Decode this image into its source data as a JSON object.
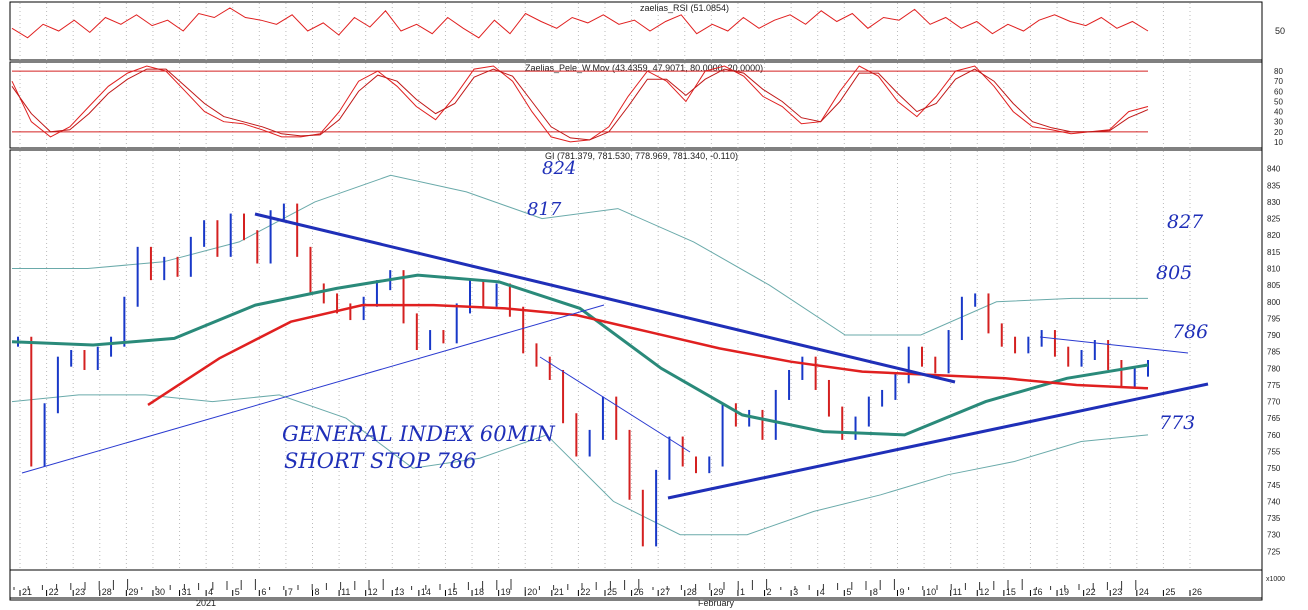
{
  "chart_data": [
    {
      "type": "line",
      "title": "zaelias_RSI (51.0854)",
      "y_ticks": [
        50
      ],
      "series": [
        {
          "name": "RSI",
          "color": "#e02020",
          "values": [
            52,
            45,
            55,
            50,
            58,
            49,
            60,
            55,
            62,
            54,
            58,
            50,
            63,
            60,
            67,
            60,
            58,
            55,
            62,
            50,
            56,
            47,
            60,
            53,
            65,
            50,
            55,
            48,
            60,
            52,
            45,
            58,
            48,
            63,
            57,
            52,
            60,
            56,
            62,
            55,
            58,
            50,
            57,
            62,
            48,
            55,
            50,
            60,
            52,
            58,
            62,
            55,
            65,
            57,
            63,
            52,
            60,
            58,
            66,
            55,
            60,
            52,
            57,
            48,
            55,
            50,
            58,
            62,
            57,
            54,
            60,
            52,
            57,
            50
          ]
        }
      ]
    },
    {
      "type": "line",
      "title": "Zaelias_Pele_W.Mov (43.4359, 47.9071, 80.0000, 20.0000)",
      "y_ticks": [
        10,
        20,
        30,
        40,
        50,
        60,
        70,
        80
      ],
      "ylim": [
        5,
        88
      ],
      "levels": [
        80,
        20
      ],
      "series": [
        {
          "name": "K",
          "color": "#e02020",
          "values": [
            70,
            30,
            15,
            25,
            45,
            65,
            78,
            85,
            80,
            60,
            40,
            30,
            28,
            22,
            15,
            15,
            18,
            40,
            70,
            80,
            65,
            45,
            32,
            55,
            82,
            85,
            70,
            40,
            15,
            10,
            12,
            25,
            55,
            80,
            70,
            50,
            80,
            85,
            75,
            55,
            45,
            28,
            30,
            60,
            85,
            75,
            50,
            35,
            55,
            80,
            85,
            65,
            40,
            25,
            22,
            18,
            20,
            22,
            40,
            45
          ]
        },
        {
          "name": "D",
          "color": "#c01818",
          "values": [
            65,
            38,
            20,
            22,
            38,
            58,
            72,
            82,
            82,
            65,
            48,
            35,
            30,
            25,
            18,
            16,
            17,
            32,
            60,
            76,
            70,
            52,
            38,
            48,
            74,
            82,
            75,
            50,
            25,
            14,
            12,
            20,
            45,
            72,
            72,
            56,
            72,
            82,
            78,
            62,
            50,
            34,
            30,
            50,
            78,
            78,
            58,
            40,
            48,
            72,
            82,
            70,
            48,
            30,
            24,
            20,
            20,
            21,
            34,
            42
          ]
        }
      ]
    },
    {
      "type": "line",
      "title": "GI (781.379, 781.530, 778.969, 781.340, -0.110)",
      "ylim": [
        720,
        845
      ],
      "y_ticks": [
        725,
        730,
        735,
        740,
        745,
        750,
        755,
        760,
        765,
        770,
        775,
        780,
        785,
        790,
        795,
        800,
        805,
        810,
        815,
        820,
        825,
        830,
        835,
        840
      ],
      "x_ticks": [
        "21",
        "22",
        "23",
        "28",
        "29",
        "30",
        "31",
        "4",
        "5",
        "6",
        "7",
        "8",
        "11",
        "12",
        "13",
        "14",
        "15",
        "18",
        "19",
        "20",
        "21",
        "22",
        "25",
        "26",
        "27",
        "28",
        "29",
        "1",
        "2",
        "3",
        "4",
        "5",
        "8",
        "9",
        "10",
        "11",
        "12",
        "15",
        "16",
        "19",
        "22",
        "23",
        "24",
        "25",
        "26"
      ],
      "x_period_labels": [
        "2021",
        "February"
      ],
      "volume_label": "x1000",
      "series": [
        {
          "name": "price",
          "color": "#d42020",
          "color_up": "#1838c8",
          "values": [
            788,
            752,
            768,
            782,
            784,
            781,
            785,
            788,
            800,
            815,
            808,
            812,
            809,
            818,
            823,
            815,
            825,
            820,
            813,
            826,
            828,
            815,
            804,
            801,
            798,
            796,
            800,
            805,
            808,
            795,
            787,
            790,
            789,
            798,
            805,
            800,
            804,
            797,
            786,
            782,
            778,
            765,
            755,
            760,
            770,
            760,
            742,
            728,
            748,
            758,
            752,
            750,
            752,
            768,
            764,
            766,
            760,
            772,
            778,
            782,
            775,
            767,
            760,
            764,
            770,
            772,
            777,
            785,
            782,
            780,
            790,
            800,
            801,
            792,
            788,
            786,
            788,
            790,
            785,
            782,
            784,
            787,
            781,
            776,
            779,
            781
          ]
        },
        {
          "name": "MA slow",
          "color": "#e02020",
          "values": [
            769,
            783,
            794,
            799,
            799,
            798,
            796,
            791,
            786,
            782,
            779,
            778,
            777,
            775,
            774
          ]
        },
        {
          "name": "MA fast",
          "color": "#2a8a7a",
          "values": [
            788,
            787,
            789,
            799,
            804,
            808,
            806,
            798,
            780,
            766,
            761,
            760,
            770,
            777,
            781
          ]
        },
        {
          "name": "upper band",
          "color": "#6aaaaa",
          "values": [
            810,
            810,
            812,
            818,
            830,
            838,
            833,
            825,
            828,
            818,
            805,
            790,
            790,
            800,
            801,
            801
          ]
        },
        {
          "name": "lower band",
          "color": "#6aaaaa",
          "values": [
            770,
            772,
            772,
            770,
            772,
            765,
            750,
            753,
            760,
            740,
            730,
            730,
            737,
            742,
            748,
            752,
            758,
            760
          ]
        }
      ],
      "annotations": [
        "824",
        "817",
        "827",
        "805",
        "786",
        "773",
        "GENERAL INDEX 60MIN",
        "SHORT STOP 786"
      ]
    }
  ]
}
